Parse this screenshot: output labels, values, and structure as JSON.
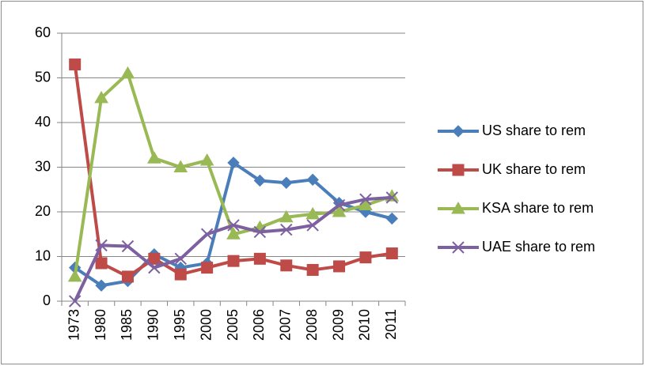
{
  "chart_data": {
    "type": "line",
    "categories": [
      "1973",
      "1980",
      "1985",
      "1990",
      "1995",
      "2000",
      "2005",
      "2006",
      "2007",
      "2008",
      "2009",
      "2010",
      "2011"
    ],
    "series": [
      {
        "name": "US share to rem",
        "color": "#4a7ebb",
        "marker": "diamond",
        "values": [
          7.5,
          3.5,
          4.5,
          10.5,
          7.5,
          8.5,
          31,
          27,
          26.5,
          27.2,
          22,
          20,
          18.5
        ]
      },
      {
        "name": "UK share to rem",
        "color": "#be4b48",
        "marker": "square",
        "values": [
          53,
          8.5,
          5.5,
          9.5,
          6,
          7.5,
          9,
          9.5,
          8,
          7,
          7.8,
          9.8,
          10.7
        ]
      },
      {
        "name": "KSA share to rem",
        "color": "#98b954",
        "marker": "triangle",
        "values": [
          5.5,
          45.5,
          51,
          32,
          30,
          31.5,
          15,
          16.5,
          18.8,
          19.5,
          20,
          21.5,
          23.5
        ]
      },
      {
        "name": "UAE share to rem",
        "color": "#7d60a0",
        "marker": "x",
        "values": [
          0,
          12.5,
          12.3,
          7.5,
          9.5,
          15,
          17,
          15.5,
          16,
          17,
          21.5,
          22.8,
          23.2
        ]
      }
    ],
    "ylim": [
      0,
      60
    ],
    "yticks": [
      0,
      10,
      20,
      30,
      40,
      50,
      60
    ],
    "grid": true,
    "legend": "right"
  }
}
